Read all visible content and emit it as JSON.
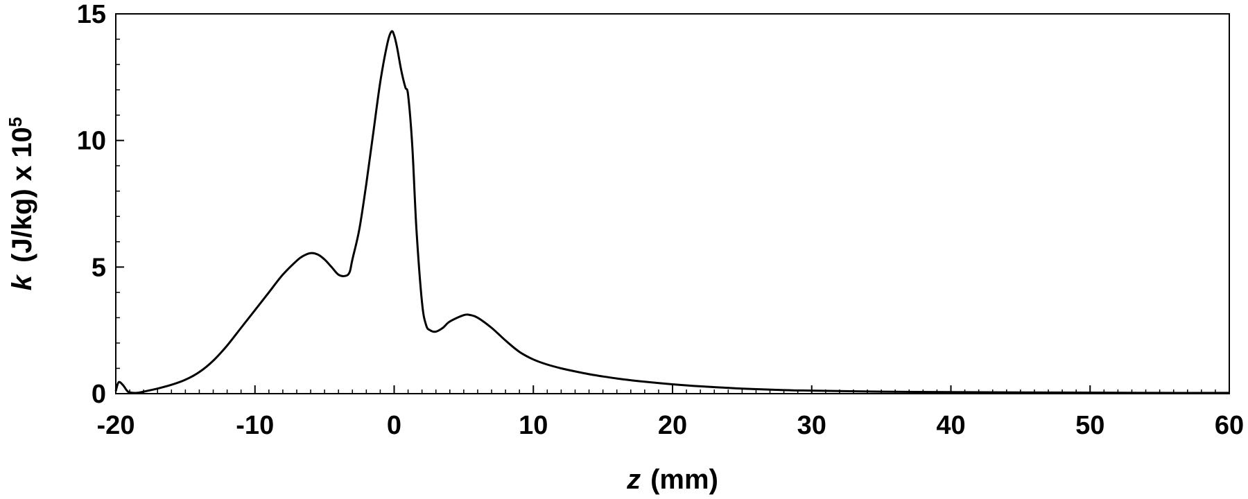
{
  "chart_data": {
    "type": "line",
    "xlabel": {
      "symbol": "z",
      "units": "(mm)"
    },
    "ylabel": {
      "symbol": "k",
      "units": "(J/kg) x 10",
      "exponent": "5"
    },
    "xlim": [
      -20,
      60
    ],
    "ylim": [
      0,
      15
    ],
    "x_ticks": [
      "-20",
      "-10",
      "0",
      "10",
      "20",
      "30",
      "40",
      "50",
      "60"
    ],
    "y_ticks": [
      "0",
      "5",
      "10",
      "15"
    ],
    "x_minor_step": 1,
    "y_minor_step": 1,
    "grid": false,
    "series": [
      {
        "color": "#000000",
        "x": [
          -20,
          -19.8,
          -19.5,
          -19.2,
          -19,
          -18.5,
          -18,
          -17,
          -16,
          -15,
          -14,
          -13,
          -12,
          -11,
          -10,
          -9,
          -8,
          -7,
          -6.5,
          -6,
          -5.5,
          -5,
          -4.5,
          -4,
          -3.5,
          -3.2,
          -3,
          -2.5,
          -2,
          -1.5,
          -1,
          -0.5,
          -0.2,
          0,
          0.2,
          0.5,
          0.8,
          1,
          1.3,
          1.6,
          2,
          2.3,
          2.6,
          3,
          3.5,
          4,
          5,
          5.5,
          6,
          7,
          8,
          9,
          10,
          11,
          12,
          13,
          14,
          15,
          16,
          17,
          18,
          20,
          22,
          25,
          28,
          30,
          35,
          40,
          45,
          50,
          55,
          60
        ],
        "y": [
          0.1,
          0.45,
          0.35,
          0.12,
          0.05,
          0.03,
          0.08,
          0.2,
          0.35,
          0.55,
          0.85,
          1.3,
          1.9,
          2.6,
          3.3,
          4.0,
          4.7,
          5.25,
          5.45,
          5.55,
          5.5,
          5.3,
          5.0,
          4.7,
          4.65,
          4.8,
          5.3,
          6.5,
          8.3,
          10.3,
          12.3,
          13.8,
          14.3,
          14.15,
          13.7,
          12.8,
          12.1,
          11.8,
          9.8,
          6.5,
          3.6,
          2.7,
          2.5,
          2.45,
          2.6,
          2.85,
          3.1,
          3.1,
          3.0,
          2.6,
          2.1,
          1.65,
          1.35,
          1.15,
          1.0,
          0.88,
          0.77,
          0.68,
          0.6,
          0.53,
          0.47,
          0.37,
          0.29,
          0.2,
          0.14,
          0.12,
          0.08,
          0.06,
          0.05,
          0.04,
          0.03,
          0.03
        ]
      }
    ]
  }
}
